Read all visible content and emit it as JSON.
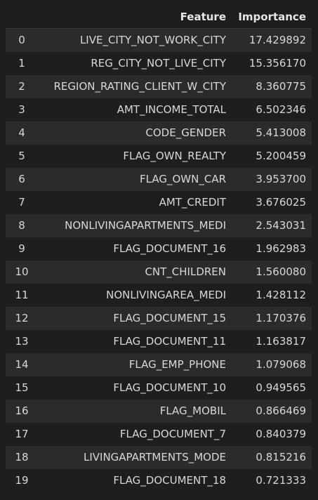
{
  "table": {
    "columns": [
      "",
      "Feature",
      "Importance"
    ],
    "rows": [
      {
        "index": "0",
        "feature": "LIVE_CITY_NOT_WORK_CITY",
        "importance": "17.429892"
      },
      {
        "index": "1",
        "feature": "REG_CITY_NOT_LIVE_CITY",
        "importance": "15.356170"
      },
      {
        "index": "2",
        "feature": "REGION_RATING_CLIENT_W_CITY",
        "importance": "8.360775"
      },
      {
        "index": "3",
        "feature": "AMT_INCOME_TOTAL",
        "importance": "6.502346"
      },
      {
        "index": "4",
        "feature": "CODE_GENDER",
        "importance": "5.413008"
      },
      {
        "index": "5",
        "feature": "FLAG_OWN_REALTY",
        "importance": "5.200459"
      },
      {
        "index": "6",
        "feature": "FLAG_OWN_CAR",
        "importance": "3.953700"
      },
      {
        "index": "7",
        "feature": "AMT_CREDIT",
        "importance": "3.676025"
      },
      {
        "index": "8",
        "feature": "NONLIVINGAPARTMENTS_MEDI",
        "importance": "2.543031"
      },
      {
        "index": "9",
        "feature": "FLAG_DOCUMENT_16",
        "importance": "1.962983"
      },
      {
        "index": "10",
        "feature": "CNT_CHILDREN",
        "importance": "1.560080"
      },
      {
        "index": "11",
        "feature": "NONLIVINGAREA_MEDI",
        "importance": "1.428112"
      },
      {
        "index": "12",
        "feature": "FLAG_DOCUMENT_15",
        "importance": "1.170376"
      },
      {
        "index": "13",
        "feature": "FLAG_DOCUMENT_11",
        "importance": "1.163817"
      },
      {
        "index": "14",
        "feature": "FLAG_EMP_PHONE",
        "importance": "1.079068"
      },
      {
        "index": "15",
        "feature": "FLAG_DOCUMENT_10",
        "importance": "0.949565"
      },
      {
        "index": "16",
        "feature": "FLAG_MOBIL",
        "importance": "0.866469"
      },
      {
        "index": "17",
        "feature": "FLAG_DOCUMENT_7",
        "importance": "0.840379"
      },
      {
        "index": "18",
        "feature": "LIVINGAPARTMENTS_MODE",
        "importance": "0.815216"
      },
      {
        "index": "19",
        "feature": "FLAG_DOCUMENT_18",
        "importance": "0.721333"
      }
    ]
  }
}
